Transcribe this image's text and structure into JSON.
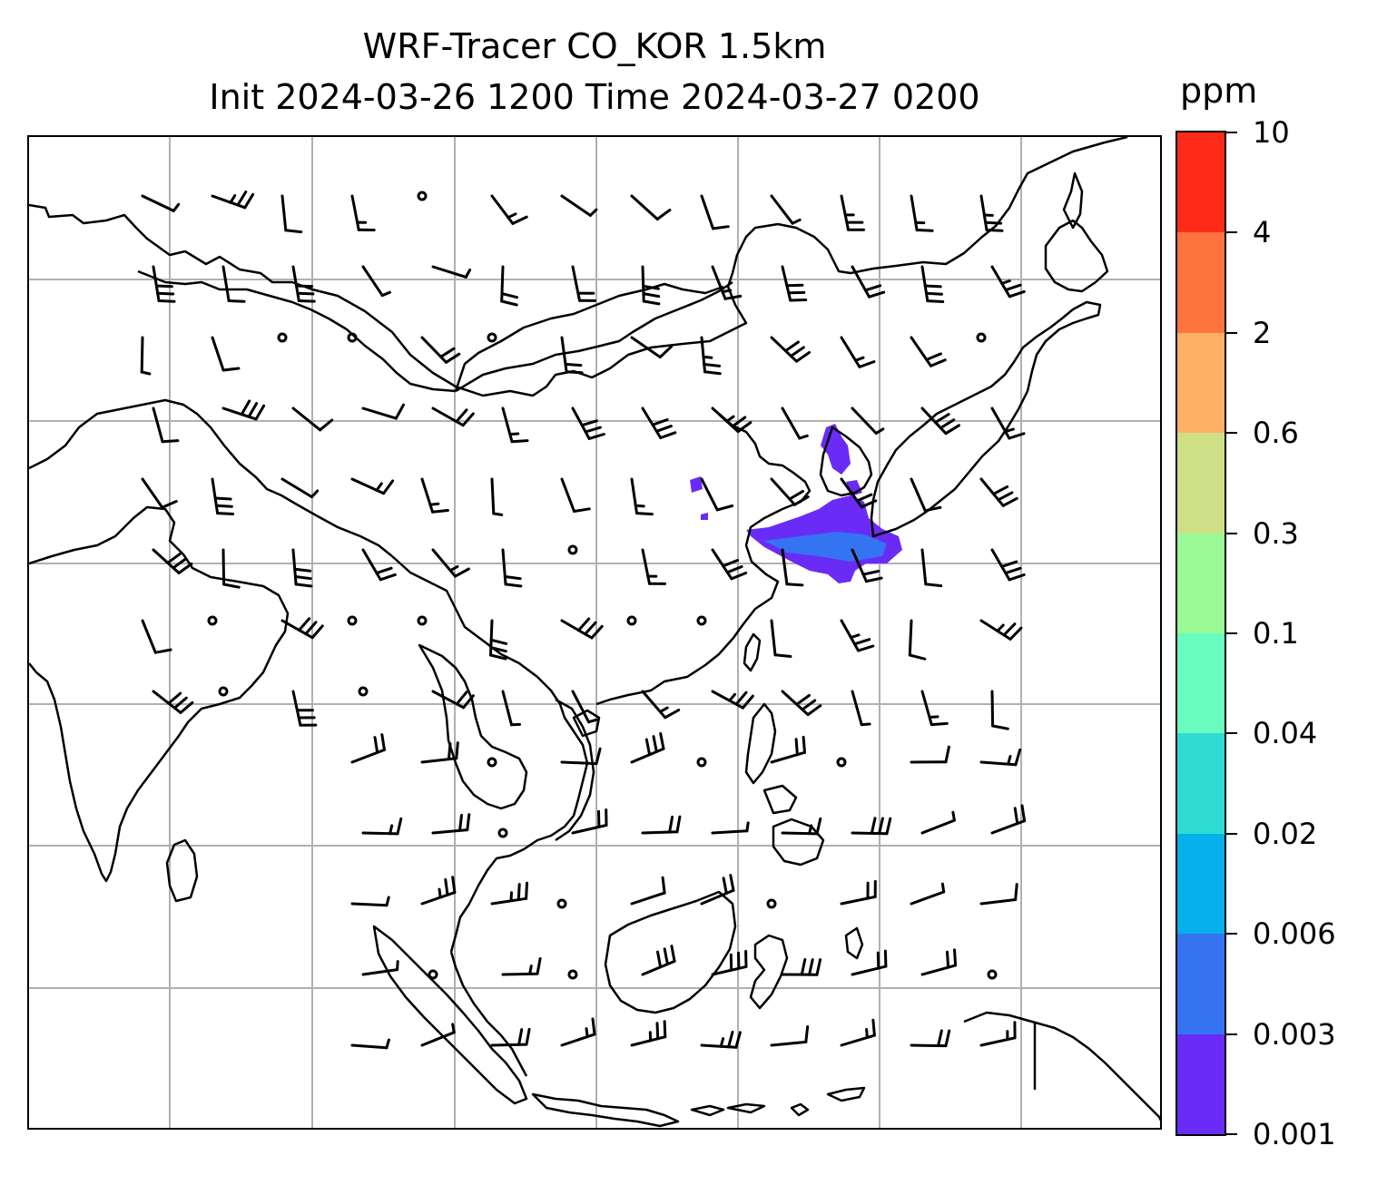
{
  "title": {
    "line1": "WRF-Tracer CO_KOR 1.5km",
    "line2": "Init 2024-03-26 1200 Time 2024-03-27 0200"
  },
  "colorbar": {
    "unit": "ppm",
    "levels": [
      "0.001",
      "0.003",
      "0.006",
      "0.02",
      "0.04",
      "0.1",
      "0.3",
      "0.6",
      "2",
      "4",
      "10"
    ],
    "colors": [
      "#6a2bf7",
      "#3474f2",
      "#06b0ea",
      "#2fdcd3",
      "#68fcc1",
      "#9afb96",
      "#cedf85",
      "#feb066",
      "#ff733e",
      "#ff2b18"
    ]
  },
  "plume_color": "#6a2bf7",
  "plume_edge_color": "#3474f2"
}
